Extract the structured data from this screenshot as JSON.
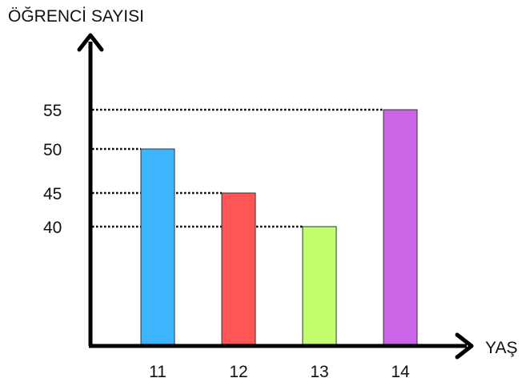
{
  "chart_data": {
    "type": "bar",
    "ylabel": "ÖĞRENCİ SAYISI",
    "xlabel": "YAŞ",
    "categories": [
      "11",
      "12",
      "13",
      "14"
    ],
    "values": [
      50,
      45,
      40,
      55
    ],
    "colors": [
      "#3db4ff",
      "#ff5555",
      "#c2ff6e",
      "#cc66e8"
    ],
    "y_tick_labels": [
      "40",
      "45",
      "50",
      "55"
    ],
    "grid": "dotted reference lines at bar tops",
    "note": "y-axis is not to scale"
  }
}
